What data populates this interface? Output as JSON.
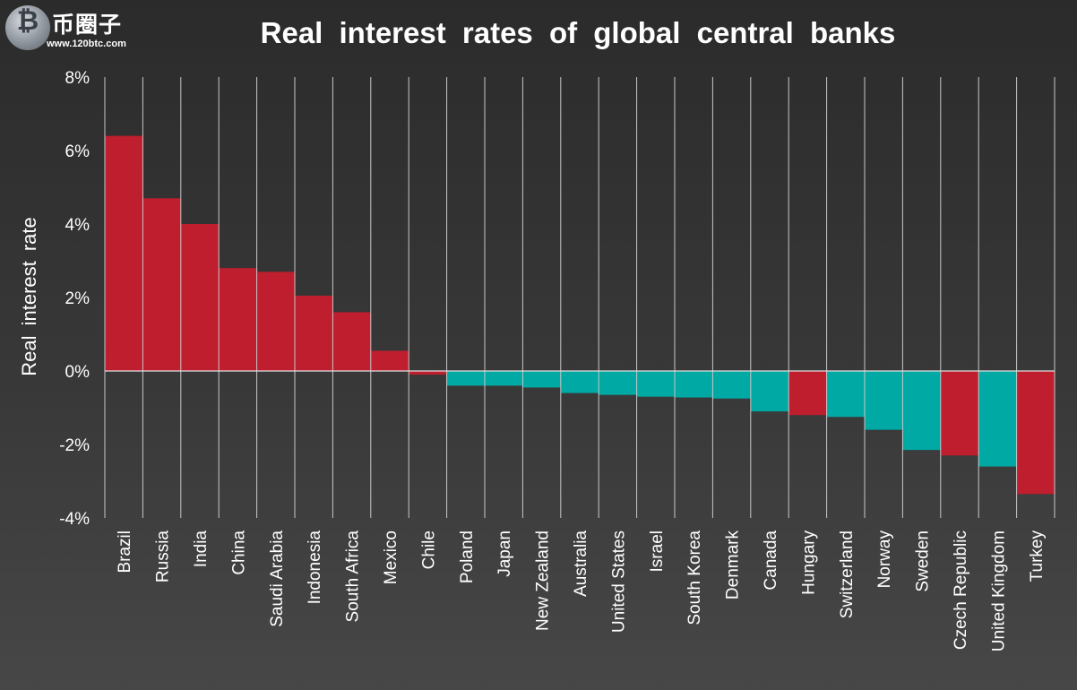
{
  "logo": {
    "name": "币圈子",
    "url": "www.120btc.com"
  },
  "colors": {
    "positive_highlight": "#be1e2d",
    "negative": "#00a9a4",
    "grid": "#c8c8c8"
  },
  "chart_data": {
    "type": "bar",
    "title": "Real interest rates of global central banks",
    "xlabel": "",
    "ylabel": "Real interest rate",
    "ylim": [
      -4,
      8
    ],
    "yticks": [
      "8%",
      "6%",
      "4%",
      "2%",
      "0%",
      "-2%",
      "-4%"
    ],
    "ytick_values": [
      8,
      6,
      4,
      2,
      0,
      -2,
      -4
    ],
    "grid": true,
    "categories": [
      "Brazil",
      "Russia",
      "India",
      "China",
      "Saudi Arabia",
      "Indonesia",
      "South Africa",
      "Mexico",
      "Chile",
      "Poland",
      "Japan",
      "New Zealand",
      "Australia",
      "United States",
      "Israel",
      "South Korea",
      "Denmark",
      "Canada",
      "Hungary",
      "Switzerland",
      "Norway",
      "Sweden",
      "Czech Republic",
      "United Kingdom",
      "Turkey"
    ],
    "values": [
      6.4,
      4.7,
      4.0,
      2.8,
      2.7,
      2.05,
      1.6,
      0.55,
      -0.1,
      -0.4,
      -0.4,
      -0.45,
      -0.6,
      -0.65,
      -0.7,
      -0.72,
      -0.75,
      -1.1,
      -1.2,
      -1.25,
      -1.6,
      -2.15,
      -2.3,
      -2.6,
      -3.35
    ],
    "bar_colors": [
      "#be1e2d",
      "#be1e2d",
      "#be1e2d",
      "#be1e2d",
      "#be1e2d",
      "#be1e2d",
      "#be1e2d",
      "#be1e2d",
      "#be1e2d",
      "#00a9a4",
      "#00a9a4",
      "#00a9a4",
      "#00a9a4",
      "#00a9a4",
      "#00a9a4",
      "#00a9a4",
      "#00a9a4",
      "#00a9a4",
      "#be1e2d",
      "#00a9a4",
      "#00a9a4",
      "#00a9a4",
      "#be1e2d",
      "#00a9a4",
      "#be1e2d"
    ]
  }
}
